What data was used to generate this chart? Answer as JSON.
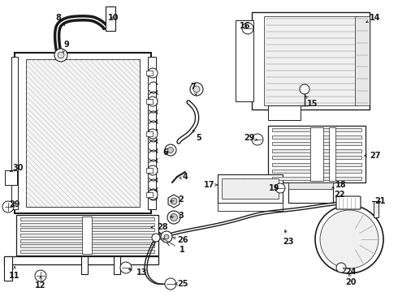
{
  "bg_color": "#ffffff",
  "dark": "#1a1a1a",
  "fig_w": 4.9,
  "fig_h": 3.6,
  "dpi": 100
}
